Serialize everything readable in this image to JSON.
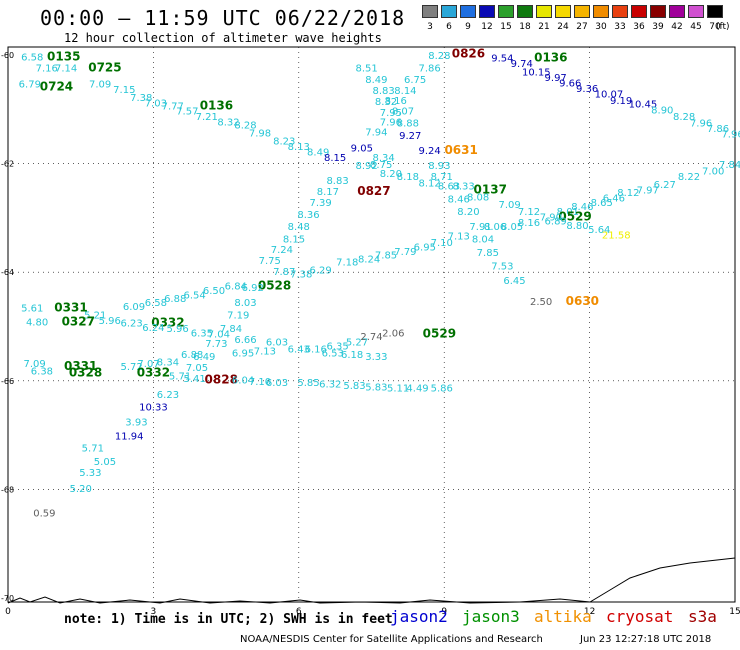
{
  "header": {
    "title": "00:00 – 11:59 UTC 06/22/2018",
    "subtitle": "12 hour collection of altimeter wave heights"
  },
  "legend": {
    "unit": "(ft)",
    "items": [
      {
        "label": "3",
        "color": "#808080"
      },
      {
        "label": "6",
        "color": "#2aa7d8"
      },
      {
        "label": "9",
        "color": "#1f6fe0"
      },
      {
        "label": "12",
        "color": "#0a0ab4"
      },
      {
        "label": "15",
        "color": "#2ca02c"
      },
      {
        "label": "18",
        "color": "#0f7a0f"
      },
      {
        "label": "21",
        "color": "#e6e600"
      },
      {
        "label": "24",
        "color": "#f5d800"
      },
      {
        "label": "27",
        "color": "#f5b400"
      },
      {
        "label": "30",
        "color": "#f08c00"
      },
      {
        "label": "33",
        "color": "#e84010"
      },
      {
        "label": "36",
        "color": "#c80000"
      },
      {
        "label": "39",
        "color": "#880000"
      },
      {
        "label": "42",
        "color": "#a0009a"
      },
      {
        "label": "45",
        "color": "#d050d0"
      },
      {
        "label": "70",
        "color": "#000000"
      }
    ]
  },
  "axes": {
    "x_ticks": [
      {
        "label": "0",
        "v": 0
      },
      {
        "label": "3",
        "v": 3
      },
      {
        "label": "6",
        "v": 6
      },
      {
        "label": "9",
        "v": 9
      },
      {
        "label": "12",
        "v": 12
      },
      {
        "label": "15",
        "v": 15
      }
    ],
    "y_ticks": [
      {
        "label": "-60",
        "v": -60
      },
      {
        "label": "-62",
        "v": -62
      },
      {
        "label": "-64",
        "v": -64
      },
      {
        "label": "-66",
        "v": -66
      },
      {
        "label": "-68",
        "v": -68
      },
      {
        "label": "-70",
        "v": -70
      }
    ]
  },
  "colors": {
    "cyan": "#25c5d5",
    "blue": "#0000b0",
    "green": "#007000",
    "orange": "#f08c00",
    "maroon": "#800000",
    "gray": "#606060",
    "yellow": "#f0f000"
  },
  "labels": [
    {
      "t": "0135",
      "x": 1.15,
      "y": -60.1,
      "c": "green",
      "b": 1
    },
    {
      "t": "0725",
      "x": 2.0,
      "y": -60.3,
      "c": "green",
      "b": 1
    },
    {
      "t": "0724",
      "x": 1.0,
      "y": -60.65,
      "c": "green",
      "b": 1
    },
    {
      "t": "6.58",
      "x": 0.5,
      "y": -60.1,
      "c": "cyan"
    },
    {
      "t": "7.16",
      "x": 0.8,
      "y": -60.3,
      "c": "cyan"
    },
    {
      "t": "7.14",
      "x": 1.2,
      "y": -60.3,
      "c": "cyan"
    },
    {
      "t": "6.79",
      "x": 0.45,
      "y": -60.6,
      "c": "cyan"
    },
    {
      "t": "7.09",
      "x": 1.9,
      "y": -60.6,
      "c": "cyan"
    },
    {
      "t": "7.15",
      "x": 2.4,
      "y": -60.7,
      "c": "cyan"
    },
    {
      "t": "7.38",
      "x": 2.75,
      "y": -60.85,
      "c": "cyan"
    },
    {
      "t": "7.03",
      "x": 3.05,
      "y": -60.95,
      "c": "cyan"
    },
    {
      "t": "7.77",
      "x": 3.4,
      "y": -61.0,
      "c": "cyan"
    },
    {
      "t": "0136",
      "x": 4.3,
      "y": -61.0,
      "c": "green",
      "b": 1
    },
    {
      "t": "7.57",
      "x": 3.7,
      "y": -61.1,
      "c": "cyan"
    },
    {
      "t": "7.21",
      "x": 4.1,
      "y": -61.2,
      "c": "cyan"
    },
    {
      "t": "8.32",
      "x": 4.55,
      "y": -61.3,
      "c": "cyan"
    },
    {
      "t": "8.28",
      "x": 4.9,
      "y": -61.35,
      "c": "cyan"
    },
    {
      "t": "7.98",
      "x": 5.2,
      "y": -61.5,
      "c": "cyan"
    },
    {
      "t": "8.23",
      "x": 5.7,
      "y": -61.65,
      "c": "cyan"
    },
    {
      "t": "8.13",
      "x": 6.0,
      "y": -61.75,
      "c": "cyan"
    },
    {
      "t": "8.49",
      "x": 6.4,
      "y": -61.85,
      "c": "cyan"
    },
    {
      "t": "8.15",
      "x": 6.75,
      "y": -61.95,
      "c": "blue"
    },
    {
      "t": "9.05",
      "x": 7.3,
      "y": -61.78,
      "c": "blue"
    },
    {
      "t": "8.51",
      "x": 7.4,
      "y": -60.3,
      "c": "cyan"
    },
    {
      "t": "8.49",
      "x": 7.6,
      "y": -60.52,
      "c": "cyan"
    },
    {
      "t": "8.28",
      "x": 8.9,
      "y": -60.07,
      "c": "cyan"
    },
    {
      "t": "7.86",
      "x": 8.7,
      "y": -60.3,
      "c": "cyan"
    },
    {
      "t": "6.75",
      "x": 8.4,
      "y": -60.52,
      "c": "cyan"
    },
    {
      "t": "8.83",
      "x": 7.75,
      "y": -60.72,
      "c": "cyan"
    },
    {
      "t": "8.14",
      "x": 8.2,
      "y": -60.72,
      "c": "cyan"
    },
    {
      "t": "8.32",
      "x": 7.8,
      "y": -60.92,
      "c": "cyan"
    },
    {
      "t": "8.16",
      "x": 8.0,
      "y": -60.9,
      "c": "cyan"
    },
    {
      "t": "7.95",
      "x": 7.9,
      "y": -61.12,
      "c": "cyan"
    },
    {
      "t": "8.07",
      "x": 8.15,
      "y": -61.1,
      "c": "cyan"
    },
    {
      "t": "7.96",
      "x": 7.9,
      "y": -61.3,
      "c": "cyan"
    },
    {
      "t": "8.88",
      "x": 8.25,
      "y": -61.32,
      "c": "cyan"
    },
    {
      "t": "7.94",
      "x": 7.6,
      "y": -61.48,
      "c": "cyan"
    },
    {
      "t": "9.27",
      "x": 8.3,
      "y": -61.55,
      "c": "blue"
    },
    {
      "t": "9.24",
      "x": 8.7,
      "y": -61.82,
      "c": "blue"
    },
    {
      "t": "0631",
      "x": 9.35,
      "y": -61.82,
      "c": "orange",
      "b": 1
    },
    {
      "t": "0826",
      "x": 9.5,
      "y": -60.05,
      "c": "maroon",
      "b": 1
    },
    {
      "t": "9.54",
      "x": 10.2,
      "y": -60.12,
      "c": "blue"
    },
    {
      "t": "9.74",
      "x": 10.6,
      "y": -60.22,
      "c": "blue"
    },
    {
      "t": "0136",
      "x": 11.2,
      "y": -60.12,
      "c": "green",
      "b": 1
    },
    {
      "t": "10.15",
      "x": 10.9,
      "y": -60.38,
      "c": "blue"
    },
    {
      "t": "9.97",
      "x": 11.3,
      "y": -60.48,
      "c": "blue"
    },
    {
      "t": "9.66",
      "x": 11.6,
      "y": -60.58,
      "c": "blue"
    },
    {
      "t": "9.36",
      "x": 11.95,
      "y": -60.68,
      "c": "blue"
    },
    {
      "t": "10.07",
      "x": 12.4,
      "y": -60.78,
      "c": "blue"
    },
    {
      "t": "9.19",
      "x": 12.65,
      "y": -60.9,
      "c": "blue"
    },
    {
      "t": "10.45",
      "x": 13.1,
      "y": -60.97,
      "c": "blue"
    },
    {
      "t": "8.90",
      "x": 13.5,
      "y": -61.08,
      "c": "cyan"
    },
    {
      "t": "8.28",
      "x": 13.95,
      "y": -61.2,
      "c": "cyan"
    },
    {
      "t": "7.96",
      "x": 14.3,
      "y": -61.32,
      "c": "cyan"
    },
    {
      "t": "7.86",
      "x": 14.65,
      "y": -61.42,
      "c": "cyan"
    },
    {
      "t": "7.96",
      "x": 14.95,
      "y": -61.52,
      "c": "cyan"
    },
    {
      "t": "7.84",
      "x": 14.9,
      "y": -62.08,
      "c": "cyan"
    },
    {
      "t": "7.00",
      "x": 14.55,
      "y": -62.2,
      "c": "cyan"
    },
    {
      "t": "8.22",
      "x": 14.05,
      "y": -62.3,
      "c": "cyan"
    },
    {
      "t": "6.27",
      "x": 13.55,
      "y": -62.45,
      "c": "cyan"
    },
    {
      "t": "7.97",
      "x": 13.2,
      "y": -62.55,
      "c": "cyan"
    },
    {
      "t": "8.12",
      "x": 12.8,
      "y": -62.6,
      "c": "cyan"
    },
    {
      "t": "6.46",
      "x": 12.5,
      "y": -62.7,
      "c": "cyan"
    },
    {
      "t": "8.65",
      "x": 12.25,
      "y": -62.78,
      "c": "cyan"
    },
    {
      "t": "8.46",
      "x": 11.85,
      "y": -62.85,
      "c": "cyan"
    },
    {
      "t": "8.01",
      "x": 11.55,
      "y": -62.95,
      "c": "cyan"
    },
    {
      "t": "0529",
      "x": 11.7,
      "y": -63.05,
      "c": "green",
      "b": 1
    },
    {
      "t": "7.90",
      "x": 11.2,
      "y": -63.05,
      "c": "cyan"
    },
    {
      "t": "7.12",
      "x": 10.75,
      "y": -62.95,
      "c": "cyan"
    },
    {
      "t": "8.16",
      "x": 10.75,
      "y": -63.15,
      "c": "cyan"
    },
    {
      "t": "6.89",
      "x": 11.3,
      "y": -63.12,
      "c": "cyan"
    },
    {
      "t": "8.80",
      "x": 11.75,
      "y": -63.2,
      "c": "cyan"
    },
    {
      "t": "5.64",
      "x": 12.2,
      "y": -63.28,
      "c": "cyan"
    },
    {
      "t": "21.58",
      "x": 12.55,
      "y": -63.38,
      "c": "yellow"
    },
    {
      "t": "8.34",
      "x": 7.75,
      "y": -61.95,
      "c": "cyan"
    },
    {
      "t": "8.92",
      "x": 7.4,
      "y": -62.1,
      "c": "cyan"
    },
    {
      "t": "8.75",
      "x": 7.7,
      "y": -62.08,
      "c": "cyan"
    },
    {
      "t": "8.20",
      "x": 7.9,
      "y": -62.25,
      "c": "cyan"
    },
    {
      "t": "8.18",
      "x": 8.25,
      "y": -62.3,
      "c": "cyan"
    },
    {
      "t": "8.93",
      "x": 8.9,
      "y": -62.1,
      "c": "cyan"
    },
    {
      "t": "8.71",
      "x": 8.95,
      "y": -62.3,
      "c": "cyan"
    },
    {
      "t": "8.12",
      "x": 8.7,
      "y": -62.42,
      "c": "cyan"
    },
    {
      "t": "8.63",
      "x": 9.1,
      "y": -62.48,
      "c": "cyan"
    },
    {
      "t": "8.33",
      "x": 9.4,
      "y": -62.48,
      "c": "cyan"
    },
    {
      "t": "0137",
      "x": 9.95,
      "y": -62.55,
      "c": "green",
      "b": 1
    },
    {
      "t": "8.46",
      "x": 9.3,
      "y": -62.72,
      "c": "cyan"
    },
    {
      "t": "8.08",
      "x": 9.7,
      "y": -62.68,
      "c": "cyan"
    },
    {
      "t": "7.09",
      "x": 10.35,
      "y": -62.82,
      "c": "cyan"
    },
    {
      "t": "8.20",
      "x": 9.5,
      "y": -62.95,
      "c": "cyan"
    },
    {
      "t": "7.91",
      "x": 9.75,
      "y": -63.22,
      "c": "cyan"
    },
    {
      "t": "8.06",
      "x": 10.05,
      "y": -63.22,
      "c": "cyan"
    },
    {
      "t": "8.05",
      "x": 10.4,
      "y": -63.22,
      "c": "cyan"
    },
    {
      "t": "7.13",
      "x": 9.3,
      "y": -63.4,
      "c": "cyan"
    },
    {
      "t": "8.04",
      "x": 9.8,
      "y": -63.45,
      "c": "cyan"
    },
    {
      "t": "7.85",
      "x": 9.9,
      "y": -63.7,
      "c": "cyan"
    },
    {
      "t": "7.53",
      "x": 10.2,
      "y": -63.95,
      "c": "cyan"
    },
    {
      "t": "6.45",
      "x": 10.45,
      "y": -64.22,
      "c": "cyan"
    },
    {
      "t": "2.50",
      "x": 11.0,
      "y": -64.6,
      "c": "gray"
    },
    {
      "t": "0630",
      "x": 11.85,
      "y": -64.6,
      "c": "orange",
      "b": 1
    },
    {
      "t": "0827",
      "x": 7.55,
      "y": -62.58,
      "c": "maroon",
      "b": 1
    },
    {
      "t": "8.83",
      "x": 6.8,
      "y": -62.38,
      "c": "cyan"
    },
    {
      "t": "8.17",
      "x": 6.6,
      "y": -62.58,
      "c": "cyan"
    },
    {
      "t": "7.39",
      "x": 6.45,
      "y": -62.78,
      "c": "cyan"
    },
    {
      "t": "8.36",
      "x": 6.2,
      "y": -63.0,
      "c": "cyan"
    },
    {
      "t": "8.48",
      "x": 6.0,
      "y": -63.22,
      "c": "cyan"
    },
    {
      "t": "8.15",
      "x": 5.9,
      "y": -63.45,
      "c": "cyan"
    },
    {
      "t": "7.24",
      "x": 5.65,
      "y": -63.65,
      "c": "cyan"
    },
    {
      "t": "7.75",
      "x": 5.4,
      "y": -63.85,
      "c": "cyan"
    },
    {
      "t": "7.18",
      "x": 7.0,
      "y": -63.88,
      "c": "cyan"
    },
    {
      "t": "8.24",
      "x": 7.45,
      "y": -63.82,
      "c": "cyan"
    },
    {
      "t": "7.85",
      "x": 7.8,
      "y": -63.75,
      "c": "cyan"
    },
    {
      "t": "7.79",
      "x": 8.2,
      "y": -63.68,
      "c": "cyan"
    },
    {
      "t": "6.95",
      "x": 8.6,
      "y": -63.6,
      "c": "cyan"
    },
    {
      "t": "7.10",
      "x": 8.95,
      "y": -63.52,
      "c": "cyan"
    },
    {
      "t": "6.29",
      "x": 6.45,
      "y": -64.02,
      "c": "cyan"
    },
    {
      "t": "7.87",
      "x": 5.7,
      "y": -64.05,
      "c": "cyan"
    },
    {
      "t": "7.38",
      "x": 6.05,
      "y": -64.1,
      "c": "cyan"
    },
    {
      "t": "0528",
      "x": 5.5,
      "y": -64.32,
      "c": "green",
      "b": 1
    },
    {
      "t": "6.92",
      "x": 5.05,
      "y": -64.35,
      "c": "cyan"
    },
    {
      "t": "6.84",
      "x": 4.7,
      "y": -64.32,
      "c": "cyan"
    },
    {
      "t": "6.50",
      "x": 4.25,
      "y": -64.4,
      "c": "cyan"
    },
    {
      "t": "6.54",
      "x": 3.85,
      "y": -64.48,
      "c": "cyan"
    },
    {
      "t": "6.88",
      "x": 3.45,
      "y": -64.55,
      "c": "cyan"
    },
    {
      "t": "6.58",
      "x": 3.05,
      "y": -64.62,
      "c": "cyan"
    },
    {
      "t": "6.09",
      "x": 2.6,
      "y": -64.7,
      "c": "cyan"
    },
    {
      "t": "5.61",
      "x": 0.5,
      "y": -64.72,
      "c": "cyan"
    },
    {
      "t": "0331",
      "x": 1.3,
      "y": -64.72,
      "c": "green",
      "b": 1
    },
    {
      "t": "5.21",
      "x": 1.8,
      "y": -64.85,
      "c": "cyan"
    },
    {
      "t": "5.96",
      "x": 2.1,
      "y": -64.95,
      "c": "cyan"
    },
    {
      "t": "4.80",
      "x": 0.6,
      "y": -64.98,
      "c": "cyan"
    },
    {
      "t": "0327",
      "x": 1.45,
      "y": -64.98,
      "c": "green",
      "b": 1
    },
    {
      "t": "6.23",
      "x": 2.55,
      "y": -65.0,
      "c": "cyan"
    },
    {
      "t": "8.03",
      "x": 4.9,
      "y": -64.62,
      "c": "cyan"
    },
    {
      "t": "7.19",
      "x": 4.75,
      "y": -64.85,
      "c": "cyan"
    },
    {
      "t": "0332",
      "x": 3.3,
      "y": -65.0,
      "c": "green",
      "b": 1
    },
    {
      "t": "6.24",
      "x": 3.0,
      "y": -65.08,
      "c": "cyan"
    },
    {
      "t": "5.96",
      "x": 3.5,
      "y": -65.1,
      "c": "cyan"
    },
    {
      "t": "7.84",
      "x": 4.6,
      "y": -65.1,
      "c": "cyan"
    },
    {
      "t": "6.35",
      "x": 4.0,
      "y": -65.18,
      "c": "cyan"
    },
    {
      "t": "7.04",
      "x": 4.35,
      "y": -65.2,
      "c": "cyan"
    },
    {
      "t": "7.73",
      "x": 4.3,
      "y": -65.38,
      "c": "cyan"
    },
    {
      "t": "6.66",
      "x": 4.9,
      "y": -65.3,
      "c": "cyan"
    },
    {
      "t": "6.03",
      "x": 5.55,
      "y": -65.35,
      "c": "cyan"
    },
    {
      "t": "7.13",
      "x": 5.3,
      "y": -65.52,
      "c": "cyan"
    },
    {
      "t": "6.95",
      "x": 4.85,
      "y": -65.55,
      "c": "cyan"
    },
    {
      "t": "6.43",
      "x": 6.0,
      "y": -65.48,
      "c": "cyan"
    },
    {
      "t": "6.16",
      "x": 6.35,
      "y": -65.48,
      "c": "cyan"
    },
    {
      "t": "6.35",
      "x": 6.8,
      "y": -65.42,
      "c": "cyan"
    },
    {
      "t": "5.27",
      "x": 7.2,
      "y": -65.35,
      "c": "cyan"
    },
    {
      "t": "2.74",
      "x": 7.5,
      "y": -65.25,
      "c": "gray"
    },
    {
      "t": "2.06",
      "x": 7.95,
      "y": -65.18,
      "c": "gray"
    },
    {
      "t": "0529",
      "x": 8.9,
      "y": -65.2,
      "c": "green",
      "b": 1
    },
    {
      "t": "6.53",
      "x": 6.7,
      "y": -65.55,
      "c": "cyan"
    },
    {
      "t": "6.18",
      "x": 7.1,
      "y": -65.58,
      "c": "cyan"
    },
    {
      "t": "3.33",
      "x": 7.6,
      "y": -65.62,
      "c": "cyan"
    },
    {
      "t": "6.49",
      "x": 4.05,
      "y": -65.62,
      "c": "cyan"
    },
    {
      "t": "6.88",
      "x": 3.8,
      "y": -65.58,
      "c": "cyan"
    },
    {
      "t": "7.09",
      "x": 0.55,
      "y": -65.75,
      "c": "cyan"
    },
    {
      "t": "6.38",
      "x": 0.7,
      "y": -65.88,
      "c": "cyan"
    },
    {
      "t": "0331",
      "x": 1.5,
      "y": -65.8,
      "c": "green",
      "b": 1
    },
    {
      "t": "0328",
      "x": 1.6,
      "y": -65.92,
      "c": "green",
      "b": 1
    },
    {
      "t": "5.72",
      "x": 2.55,
      "y": -65.8,
      "c": "cyan"
    },
    {
      "t": "7.07",
      "x": 2.9,
      "y": -65.75,
      "c": "cyan"
    },
    {
      "t": "8.34",
      "x": 3.3,
      "y": -65.72,
      "c": "cyan"
    },
    {
      "t": "0332",
      "x": 3.0,
      "y": -65.92,
      "c": "green",
      "b": 1
    },
    {
      "t": "7.05",
      "x": 3.9,
      "y": -65.82,
      "c": "cyan"
    },
    {
      "t": "5.71",
      "x": 3.55,
      "y": -65.98,
      "c": "cyan"
    },
    {
      "t": "5.41",
      "x": 3.85,
      "y": -66.02,
      "c": "cyan"
    },
    {
      "t": "0828",
      "x": 4.4,
      "y": -66.05,
      "c": "maroon",
      "b": 1
    },
    {
      "t": "6.04",
      "x": 4.85,
      "y": -66.05,
      "c": "cyan"
    },
    {
      "t": "7.10",
      "x": 5.2,
      "y": -66.08,
      "c": "cyan"
    },
    {
      "t": "6.03",
      "x": 5.55,
      "y": -66.1,
      "c": "cyan"
    },
    {
      "t": "5.85",
      "x": 6.2,
      "y": -66.1,
      "c": "cyan"
    },
    {
      "t": "6.32",
      "x": 6.65,
      "y": -66.12,
      "c": "cyan"
    },
    {
      "t": "5.83",
      "x": 7.15,
      "y": -66.15,
      "c": "cyan"
    },
    {
      "t": "5.83",
      "x": 7.6,
      "y": -66.18,
      "c": "cyan"
    },
    {
      "t": "5.11",
      "x": 8.05,
      "y": -66.2,
      "c": "cyan"
    },
    {
      "t": "4.49",
      "x": 8.45,
      "y": -66.2,
      "c": "cyan"
    },
    {
      "t": "5.86",
      "x": 8.95,
      "y": -66.2,
      "c": "cyan"
    },
    {
      "t": "6.23",
      "x": 3.3,
      "y": -66.32,
      "c": "cyan"
    },
    {
      "t": "10.33",
      "x": 3.0,
      "y": -66.55,
      "c": "blue"
    },
    {
      "t": "3.93",
      "x": 2.65,
      "y": -66.82,
      "c": "cyan"
    },
    {
      "t": "11.94",
      "x": 2.5,
      "y": -67.08,
      "c": "blue"
    },
    {
      "t": "5.71",
      "x": 1.75,
      "y": -67.3,
      "c": "cyan"
    },
    {
      "t": "5.05",
      "x": 2.0,
      "y": -67.55,
      "c": "cyan"
    },
    {
      "t": "5.33",
      "x": 1.7,
      "y": -67.75,
      "c": "cyan"
    },
    {
      "t": "5.20",
      "x": 1.5,
      "y": -68.05,
      "c": "cyan"
    },
    {
      "t": "0.59",
      "x": 0.75,
      "y": -68.5,
      "c": "gray"
    }
  ],
  "footer": {
    "note": "note: 1) Time is in UTC; 2) SWH is in feet",
    "sats": [
      {
        "label": "jason2",
        "color": "#0000d0"
      },
      {
        "label": "jason3",
        "color": "#009000"
      },
      {
        "label": "altika",
        "color": "#f09000"
      },
      {
        "label": "cryosat",
        "color": "#d00000"
      },
      {
        "label": "s3a",
        "color": "#a00000"
      }
    ],
    "credit": "NOAA/NESDIS Center for Satellite Applications and Research",
    "timestamp": "Jun 23 12:27:18 UTC 2018"
  }
}
